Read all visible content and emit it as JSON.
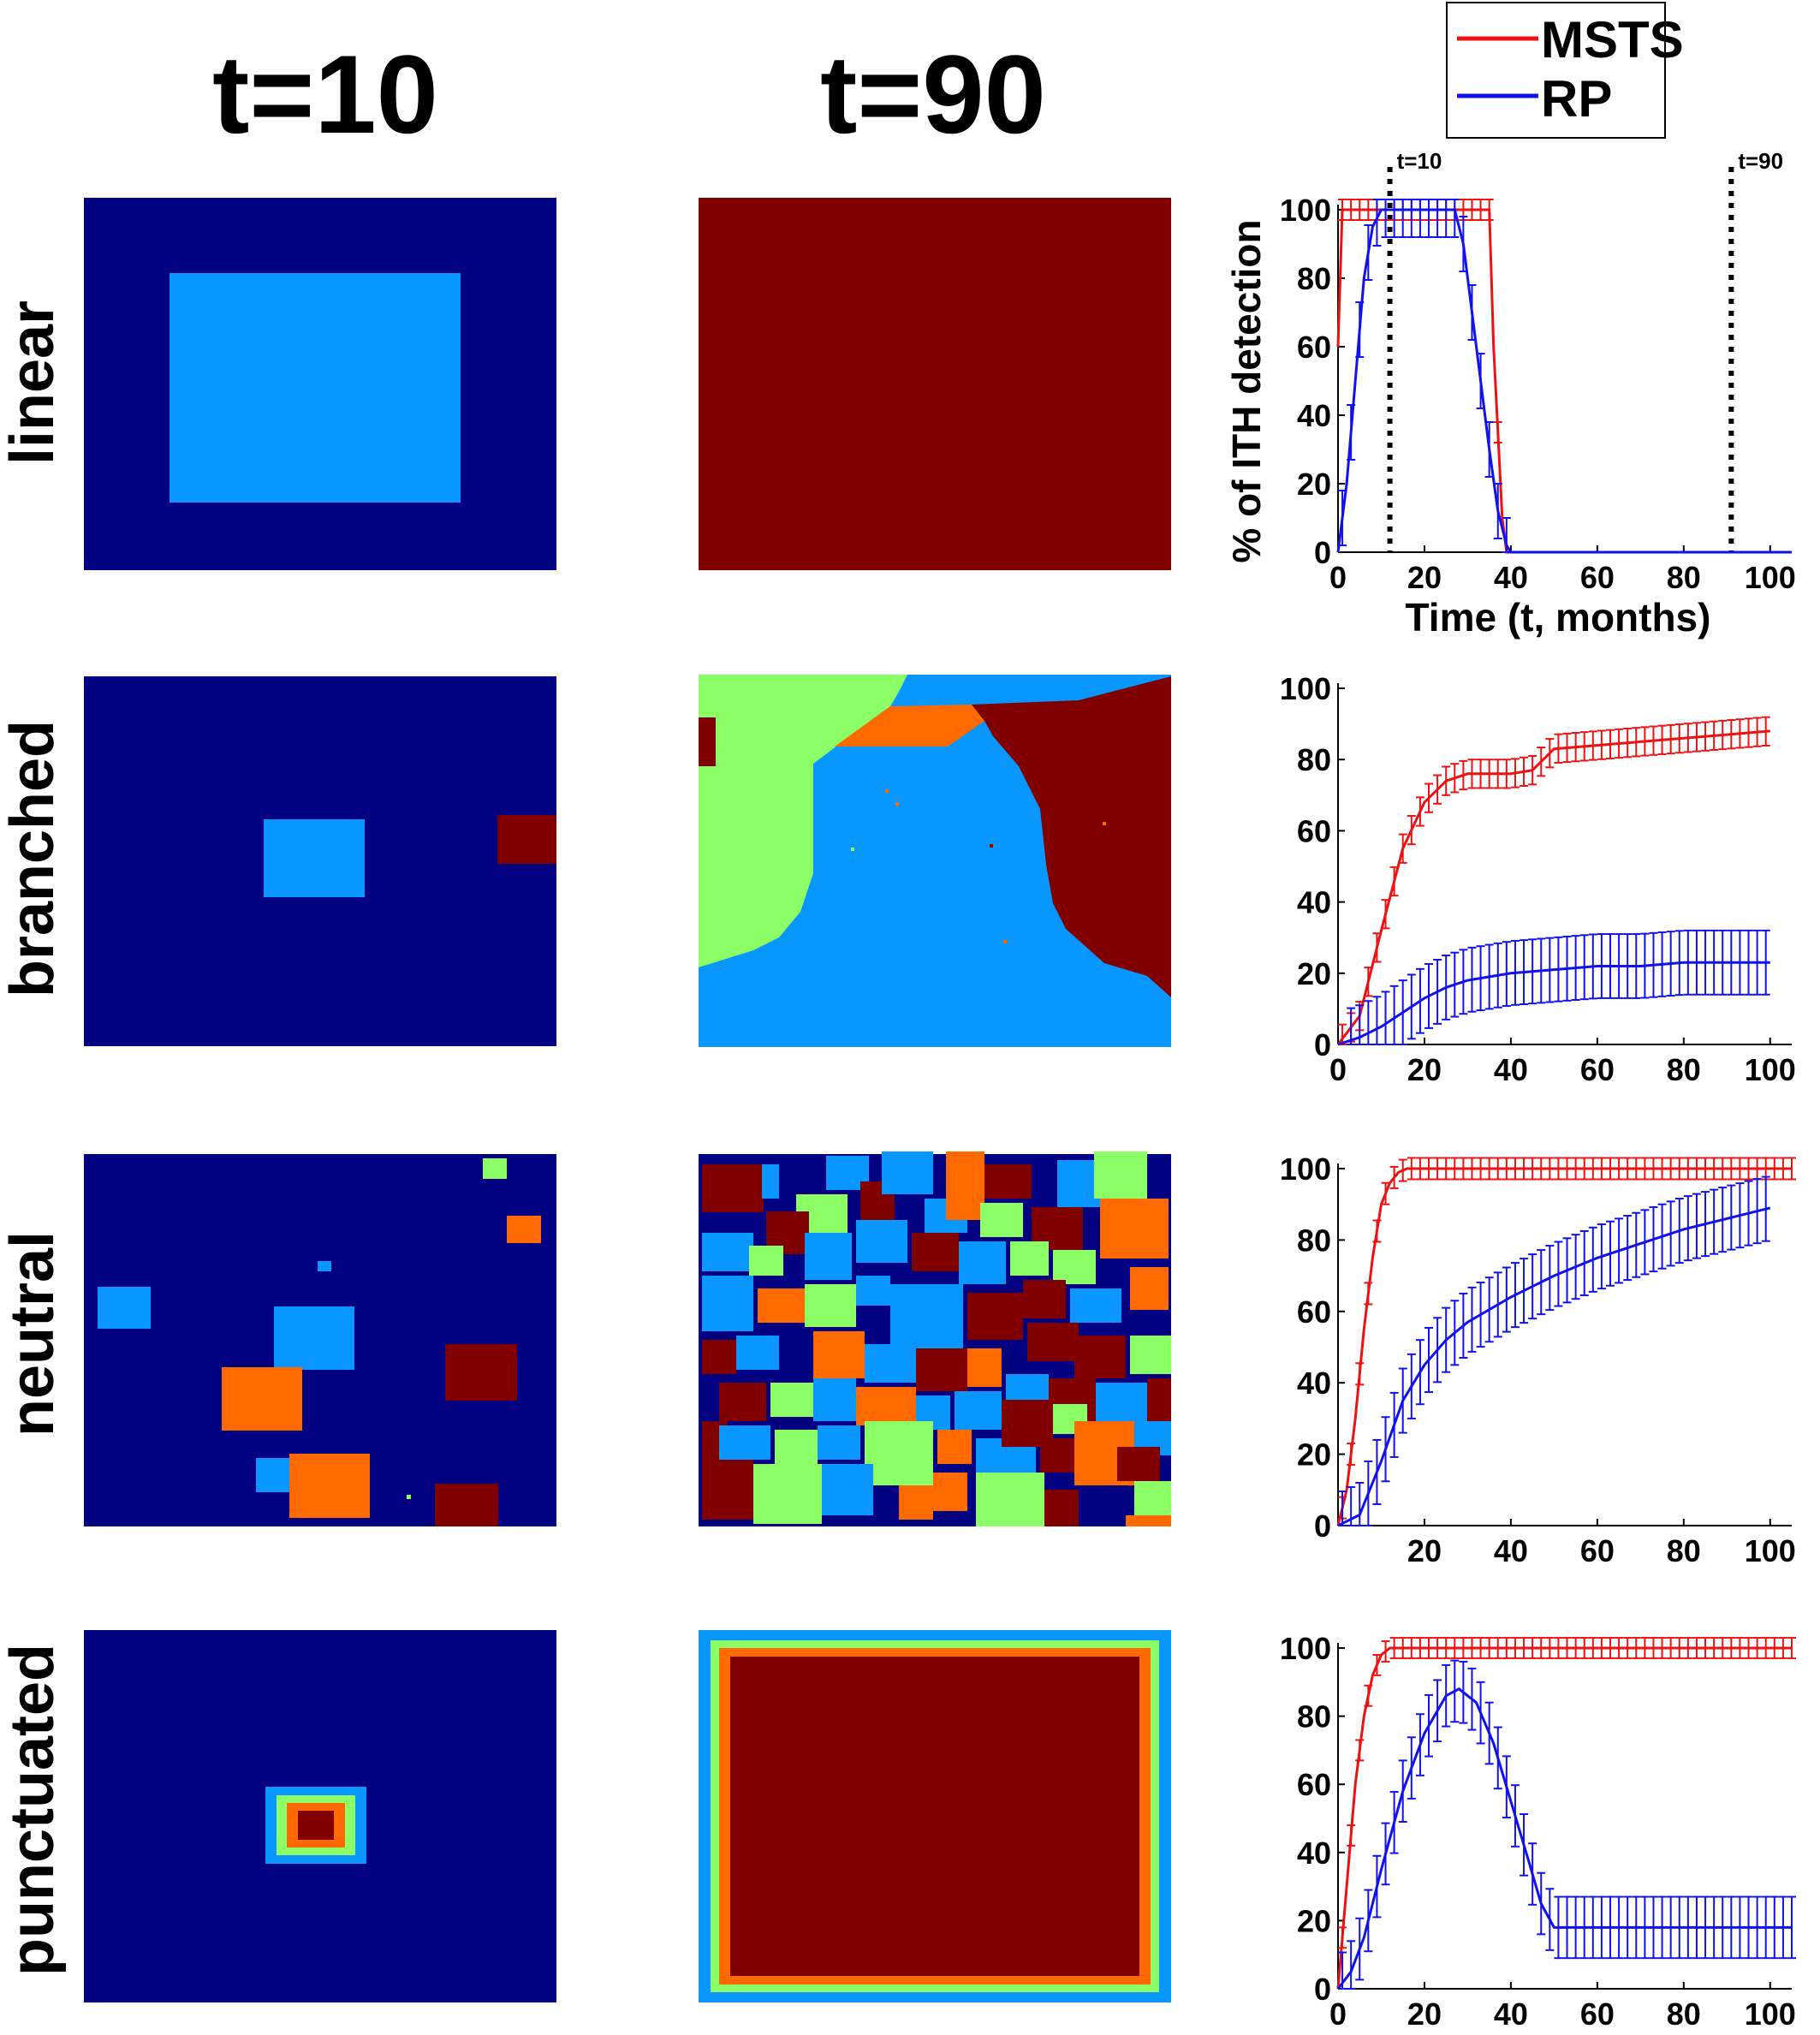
{
  "columns": [
    "t=10",
    "t=90"
  ],
  "rows": [
    "linear",
    "branched",
    "neutral",
    "punctuated"
  ],
  "legend": {
    "entries": [
      {
        "label": "MSTS",
        "color": "#ee1111"
      },
      {
        "label": "RP",
        "color": "#1111ee"
      }
    ],
    "placement": "top-right"
  },
  "colors": {
    "background_clone": "#000080",
    "light_blue_clone": "#0a96ff",
    "green_clone": "#8cff66",
    "orange_clone": "#ff6a00",
    "dark_red_clone": "#800000",
    "msts_line": "#ee1111",
    "rp_line": "#1111ee"
  },
  "chart_data": [
    {
      "type": "line",
      "panel": "linear",
      "xlabel": "Time (t, months)",
      "ylabel": "% of ITH detection",
      "xlim": [
        0,
        105
      ],
      "ylim": [
        0,
        100
      ],
      "xticks": [
        0,
        20,
        40,
        60,
        80,
        100
      ],
      "yticks": [
        0,
        20,
        40,
        60,
        80,
        100
      ],
      "annotations": [
        {
          "label": "t=10",
          "x": 12
        },
        {
          "label": "t=90",
          "x": 91
        }
      ],
      "series": [
        {
          "name": "MSTS",
          "color": "#ee1111",
          "points": [
            [
              0,
              60
            ],
            [
              1,
              100
            ],
            [
              2,
              100
            ],
            [
              20,
              100
            ],
            [
              30,
              100
            ],
            [
              35,
              100
            ],
            [
              36,
              60
            ],
            [
              37,
              35
            ],
            [
              38,
              10
            ],
            [
              39,
              0
            ],
            [
              40,
              0
            ],
            [
              105,
              0
            ]
          ],
          "error": 3
        },
        {
          "name": "RP",
          "color": "#1111ee",
          "points": [
            [
              0,
              0
            ],
            [
              2,
              20
            ],
            [
              4,
              50
            ],
            [
              6,
              80
            ],
            [
              8,
              95
            ],
            [
              10,
              100
            ],
            [
              14,
              100
            ],
            [
              25,
              100
            ],
            [
              27,
              100
            ],
            [
              29,
              90
            ],
            [
              31,
              70
            ],
            [
              33,
              50
            ],
            [
              35,
              30
            ],
            [
              37,
              12
            ],
            [
              39,
              2
            ],
            [
              40,
              0
            ],
            [
              105,
              0
            ]
          ],
          "error": 8
        }
      ]
    },
    {
      "type": "line",
      "panel": "branched",
      "xlim": [
        0,
        105
      ],
      "ylim": [
        0,
        100
      ],
      "xticks": [
        0,
        20,
        40,
        60,
        80,
        100
      ],
      "yticks": [
        0,
        20,
        40,
        60,
        80,
        100
      ],
      "series": [
        {
          "name": "MSTS",
          "color": "#ee1111",
          "points": [
            [
              0,
              0
            ],
            [
              5,
              8
            ],
            [
              10,
              32
            ],
            [
              15,
              55
            ],
            [
              20,
              68
            ],
            [
              25,
              74
            ],
            [
              30,
              76
            ],
            [
              40,
              76
            ],
            [
              45,
              77
            ],
            [
              50,
              83
            ],
            [
              60,
              84
            ],
            [
              70,
              85
            ],
            [
              80,
              86
            ],
            [
              90,
              87
            ],
            [
              100,
              88
            ]
          ],
          "error": 4
        },
        {
          "name": "RP",
          "color": "#1111ee",
          "points": [
            [
              0,
              0
            ],
            [
              5,
              2
            ],
            [
              10,
              5
            ],
            [
              15,
              9
            ],
            [
              20,
              13
            ],
            [
              25,
              16
            ],
            [
              30,
              18
            ],
            [
              40,
              20
            ],
            [
              50,
              21
            ],
            [
              60,
              22
            ],
            [
              70,
              22
            ],
            [
              80,
              23
            ],
            [
              90,
              23
            ],
            [
              100,
              23
            ]
          ],
          "error": 9
        }
      ]
    },
    {
      "type": "line",
      "panel": "neutral",
      "xlim": [
        0,
        105
      ],
      "ylim": [
        0,
        100
      ],
      "xticks": [
        20,
        40,
        60,
        80,
        100
      ],
      "yticks": [
        0,
        20,
        40,
        60,
        80,
        100
      ],
      "series": [
        {
          "name": "MSTS",
          "color": "#ee1111",
          "points": [
            [
              0,
              0
            ],
            [
              2,
              10
            ],
            [
              4,
              30
            ],
            [
              6,
              55
            ],
            [
              8,
              75
            ],
            [
              10,
              90
            ],
            [
              12,
              96
            ],
            [
              14,
              99
            ],
            [
              16,
              100
            ],
            [
              105,
              100
            ]
          ],
          "error": 3
        },
        {
          "name": "RP",
          "color": "#1111ee",
          "points": [
            [
              0,
              0
            ],
            [
              5,
              3
            ],
            [
              10,
              18
            ],
            [
              15,
              35
            ],
            [
              20,
              45
            ],
            [
              25,
              52
            ],
            [
              30,
              57
            ],
            [
              40,
              64
            ],
            [
              50,
              70
            ],
            [
              60,
              75
            ],
            [
              70,
              79
            ],
            [
              80,
              83
            ],
            [
              90,
              86
            ],
            [
              100,
              89
            ]
          ],
          "error": 9
        }
      ]
    },
    {
      "type": "line",
      "panel": "punctuated",
      "xlim": [
        0,
        105
      ],
      "ylim": [
        0,
        100
      ],
      "xticks": [
        0,
        20,
        40,
        60,
        80,
        100
      ],
      "yticks": [
        0,
        20,
        40,
        60,
        80,
        100
      ],
      "series": [
        {
          "name": "MSTS",
          "color": "#ee1111",
          "points": [
            [
              0,
              0
            ],
            [
              2,
              30
            ],
            [
              4,
              60
            ],
            [
              6,
              80
            ],
            [
              8,
              92
            ],
            [
              10,
              98
            ],
            [
              12,
              100
            ],
            [
              105,
              100
            ]
          ],
          "error": 3
        },
        {
          "name": "RP",
          "color": "#1111ee",
          "points": [
            [
              0,
              0
            ],
            [
              3,
              5
            ],
            [
              6,
              15
            ],
            [
              10,
              35
            ],
            [
              15,
              58
            ],
            [
              20,
              75
            ],
            [
              25,
              86
            ],
            [
              28,
              88
            ],
            [
              32,
              84
            ],
            [
              36,
              72
            ],
            [
              40,
              55
            ],
            [
              44,
              38
            ],
            [
              47,
              25
            ],
            [
              50,
              18
            ],
            [
              55,
              18
            ],
            [
              105,
              18
            ]
          ],
          "error": 9
        }
      ]
    }
  ]
}
